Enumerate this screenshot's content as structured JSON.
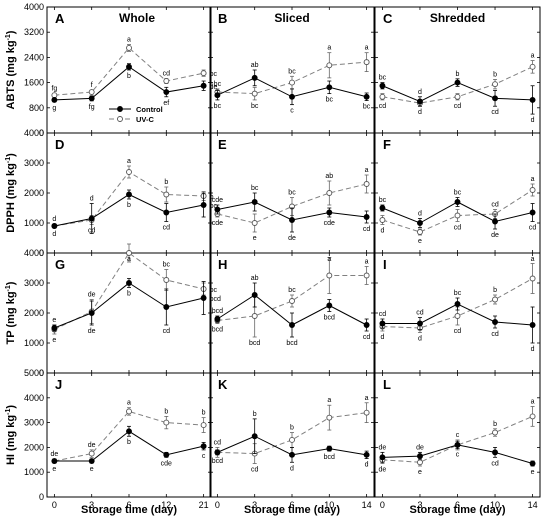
{
  "chart_data": [
    {
      "panel": "A",
      "title": "Whole",
      "ylabel_main": "ABTS",
      "ylabel_unit": "(mg kg",
      "ylabel_sup": "-1",
      "ylabel_close": ")",
      "ylim": [
        0,
        4000
      ],
      "yticks": [
        0,
        800,
        1600,
        2400,
        3200,
        4000
      ],
      "xticks": [
        0,
        3,
        6,
        12,
        21
      ],
      "series": [
        {
          "name": "Control",
          "x": [
            0,
            3,
            6,
            12,
            21
          ],
          "y": [
            1050,
            1100,
            2100,
            1300,
            1500
          ],
          "err": [
            60,
            80,
            100,
            150,
            150
          ],
          "labels": [
            "g",
            "fg",
            "b",
            "ef",
            "de"
          ]
        },
        {
          "name": "UV-C",
          "x": [
            0,
            3,
            6,
            12,
            21
          ],
          "y": [
            1200,
            1300,
            2700,
            1650,
            1900
          ],
          "err": [
            60,
            60,
            110,
            80,
            100
          ],
          "labels": [
            "fg",
            "f",
            "a",
            "cd",
            "bc"
          ]
        }
      ]
    },
    {
      "panel": "B",
      "title": "Sliced",
      "ylim": [
        0,
        4000
      ],
      "xticks": [
        0,
        3,
        6,
        10,
        14
      ],
      "series": [
        {
          "name": "Control",
          "x": [
            0,
            3,
            6,
            10,
            14
          ],
          "y": [
            1200,
            1750,
            1150,
            1450,
            1150
          ],
          "err": [
            150,
            250,
            250,
            200,
            120
          ],
          "labels": [
            "bc",
            "ab",
            "c",
            "bc",
            "bc"
          ]
        },
        {
          "name": "UV-C",
          "x": [
            0,
            3,
            6,
            10,
            14
          ],
          "y": [
            1300,
            1250,
            1600,
            2150,
            2250
          ],
          "err": [
            100,
            200,
            200,
            400,
            300
          ],
          "labels": [
            "bc",
            "bc",
            "bc",
            "a",
            "a"
          ]
        }
      ]
    },
    {
      "panel": "C",
      "title": "Shredded",
      "ylim": [
        0,
        4000
      ],
      "xticks": [
        0,
        3,
        6,
        10,
        14
      ],
      "series": [
        {
          "name": "Control",
          "x": [
            0,
            3,
            6,
            10,
            14
          ],
          "y": [
            1500,
            1000,
            1600,
            1100,
            1050
          ],
          "err": [
            100,
            150,
            120,
            250,
            450
          ],
          "labels": [
            "bc",
            "d",
            "b",
            "cd",
            "d"
          ]
        },
        {
          "name": "UV-C",
          "x": [
            0,
            3,
            6,
            10,
            14
          ],
          "y": [
            1150,
            950,
            1150,
            1550,
            2100
          ],
          "err": [
            100,
            100,
            100,
            150,
            200
          ],
          "labels": [
            "cd",
            "d",
            "cd",
            "b",
            "a"
          ]
        }
      ]
    },
    {
      "panel": "D",
      "ylabel_main": "DPPH",
      "ylabel_unit": "(mg kg",
      "ylabel_sup": "-1",
      "ylabel_close": ")",
      "ylim": [
        0,
        4000
      ],
      "yticks": [
        0,
        1000,
        2000,
        3000,
        4000
      ],
      "xticks": [
        0,
        3,
        6,
        12,
        21
      ],
      "series": [
        {
          "name": "Control",
          "x": [
            0,
            3,
            6,
            12,
            21
          ],
          "y": [
            900,
            1150,
            1950,
            1350,
            1600
          ],
          "err": [
            60,
            500,
            150,
            300,
            400
          ],
          "labels": [
            "d",
            "d",
            "b",
            "cd",
            "bc"
          ]
        },
        {
          "name": "UV-C",
          "x": [
            0,
            3,
            6,
            12,
            21
          ],
          "y": [
            900,
            1100,
            2700,
            1950,
            1900
          ],
          "err": [
            60,
            150,
            200,
            250,
            150
          ],
          "labels": [
            "d",
            "cd",
            "a",
            "b",
            "b"
          ]
        }
      ]
    },
    {
      "panel": "E",
      "ylim": [
        0,
        4000
      ],
      "xticks": [
        0,
        3,
        6,
        10,
        14
      ],
      "series": [
        {
          "name": "Control",
          "x": [
            0,
            3,
            6,
            10,
            14
          ],
          "y": [
            1450,
            1700,
            1100,
            1350,
            1200
          ],
          "err": [
            150,
            300,
            400,
            150,
            200
          ],
          "labels": [
            "cde",
            "bc",
            "de",
            "cde",
            "cd"
          ]
        },
        {
          "name": "UV-C",
          "x": [
            0,
            3,
            6,
            10,
            14
          ],
          "y": [
            1300,
            1000,
            1550,
            2000,
            2300
          ],
          "err": [
            100,
            300,
            300,
            400,
            300
          ],
          "labels": [
            "cde",
            "e",
            "bc",
            "ab",
            "a"
          ]
        }
      ]
    },
    {
      "panel": "F",
      "ylim": [
        0,
        4000
      ],
      "xticks": [
        0,
        3,
        6,
        10,
        14
      ],
      "series": [
        {
          "name": "Control",
          "x": [
            0,
            3,
            6,
            10,
            14
          ],
          "y": [
            1500,
            1000,
            1700,
            1050,
            1350
          ],
          "err": [
            100,
            150,
            150,
            250,
            300
          ],
          "labels": [
            "bc",
            "d",
            "bc",
            "de",
            "cd"
          ]
        },
        {
          "name": "UV-C",
          "x": [
            0,
            3,
            6,
            10,
            14
          ],
          "y": [
            1100,
            700,
            1250,
            1300,
            2100
          ],
          "err": [
            150,
            100,
            200,
            150,
            200
          ],
          "labels": [
            "d",
            "e",
            "cd",
            "cd",
            "a"
          ]
        }
      ]
    },
    {
      "panel": "G",
      "ylabel_main": "TP",
      "ylabel_unit": "(mg kg",
      "ylabel_sup": "-1",
      "ylabel_close": ")",
      "ylim": [
        0,
        4000
      ],
      "yticks": [
        0,
        1000,
        2000,
        3000,
        4000
      ],
      "xticks": [
        0,
        3,
        6,
        12,
        21
      ],
      "series": [
        {
          "name": "Control",
          "x": [
            0,
            3,
            6,
            12,
            21
          ],
          "y": [
            1500,
            2000,
            3000,
            2200,
            2500
          ],
          "err": [
            100,
            400,
            150,
            600,
            550
          ],
          "labels": [
            "e",
            "de",
            "b",
            "cd",
            "bcd"
          ]
        },
        {
          "name": "UV-C",
          "x": [
            0,
            3,
            6,
            12,
            21
          ],
          "y": [
            1450,
            2050,
            4000,
            3100,
            2800
          ],
          "err": [
            150,
            400,
            300,
            350,
            200
          ],
          "labels": [
            "e",
            "de",
            "a",
            "bc",
            "bc"
          ]
        }
      ]
    },
    {
      "panel": "H",
      "ylim": [
        0,
        4000
      ],
      "xticks": [
        0,
        3,
        6,
        10,
        14
      ],
      "series": [
        {
          "name": "Control",
          "x": [
            0,
            3,
            6,
            10,
            14
          ],
          "y": [
            1800,
            2600,
            1600,
            2250,
            1600
          ],
          "err": [
            100,
            400,
            400,
            200,
            200
          ],
          "labels": [
            "bcd",
            "ab",
            "bcd",
            "bcd",
            "cd"
          ]
        },
        {
          "name": "UV-C",
          "x": [
            0,
            3,
            6,
            10,
            14
          ],
          "y": [
            1750,
            1900,
            2400,
            3250,
            3250
          ],
          "err": [
            100,
            700,
            200,
            600,
            300
          ],
          "labels": [
            "bcd",
            "bcd",
            "bc",
            "a",
            "a"
          ]
        }
      ]
    },
    {
      "panel": "I",
      "ylim": [
        0,
        4000
      ],
      "xticks": [
        0,
        3,
        6,
        10,
        14
      ],
      "series": [
        {
          "name": "Control",
          "x": [
            0,
            3,
            6,
            10,
            14
          ],
          "y": [
            1650,
            1650,
            2300,
            1700,
            1600
          ],
          "err": [
            150,
            200,
            200,
            200,
            600
          ],
          "labels": [
            "cd",
            "cd",
            "bc",
            "cd",
            "d"
          ]
        },
        {
          "name": "UV-C",
          "x": [
            0,
            3,
            6,
            10,
            14
          ],
          "y": [
            1550,
            1500,
            1900,
            2450,
            3150
          ],
          "err": [
            150,
            150,
            300,
            150,
            500
          ],
          "labels": [
            "d",
            "d",
            "cd",
            "b",
            "a"
          ]
        }
      ]
    },
    {
      "panel": "J",
      "ylabel_main": "HI",
      "ylabel_unit": "(mg kg",
      "ylabel_sup": "-1",
      "ylabel_close": ")",
      "ylim": [
        0,
        5000
      ],
      "yticks": [
        0,
        1000,
        2000,
        3000,
        4000,
        5000
      ],
      "xticks": [
        0,
        3,
        6,
        12,
        21
      ],
      "series": [
        {
          "name": "Control",
          "x": [
            0,
            3,
            6,
            12,
            21
          ],
          "y": [
            1450,
            1450,
            2650,
            1700,
            2050
          ],
          "err": [
            80,
            80,
            200,
            100,
            150
          ],
          "labels": [
            "e",
            "e",
            "b",
            "cde",
            "c"
          ]
        },
        {
          "name": "UV-C",
          "x": [
            0,
            3,
            6,
            12,
            21
          ],
          "y": [
            1450,
            1750,
            3450,
            3000,
            2900
          ],
          "err": [
            80,
            150,
            150,
            250,
            300
          ],
          "labels": [
            "de",
            "de",
            "a",
            "b",
            "b"
          ]
        }
      ]
    },
    {
      "panel": "K",
      "ylim": [
        0,
        5000
      ],
      "xticks": [
        0,
        3,
        6,
        10,
        14
      ],
      "series": [
        {
          "name": "Control",
          "x": [
            0,
            3,
            6,
            10,
            14
          ],
          "y": [
            1800,
            2450,
            1700,
            1950,
            1700
          ],
          "err": [
            100,
            700,
            300,
            100,
            150
          ],
          "labels": [
            "bcd",
            "b",
            "d",
            "bcd",
            "d"
          ]
        },
        {
          "name": "UV-C",
          "x": [
            0,
            3,
            6,
            10,
            14
          ],
          "y": [
            1800,
            1750,
            2300,
            3200,
            3400
          ],
          "err": [
            200,
            400,
            300,
            500,
            400
          ],
          "labels": [
            "cd",
            "cd",
            "b",
            "a",
            "a"
          ]
        }
      ]
    },
    {
      "panel": "L",
      "ylim": [
        0,
        5000
      ],
      "xticks": [
        0,
        3,
        6,
        10,
        14
      ],
      "series": [
        {
          "name": "Control",
          "x": [
            0,
            3,
            6,
            10,
            14
          ],
          "y": [
            1600,
            1650,
            2100,
            1800,
            1350
          ],
          "err": [
            200,
            150,
            150,
            200,
            100
          ],
          "labels": [
            "de",
            "de",
            "c",
            "cd",
            "e"
          ]
        },
        {
          "name": "UV-C",
          "x": [
            0,
            3,
            6,
            10,
            14
          ],
          "y": [
            1500,
            1400,
            2100,
            2600,
            3250
          ],
          "err": [
            150,
            150,
            200,
            150,
            400
          ],
          "labels": [
            "de",
            "e",
            "c",
            "b",
            "a"
          ]
        }
      ]
    }
  ],
  "legend": {
    "entries": [
      "Control",
      "UV-C"
    ],
    "placement": "inside panel A, lower-middle"
  },
  "xlabel": "Storage time (day)",
  "colors": {
    "control_marker": "#000000",
    "uvc_marker": "#ffffff",
    "control_line": "#000000",
    "uvc_line": "#808080"
  }
}
